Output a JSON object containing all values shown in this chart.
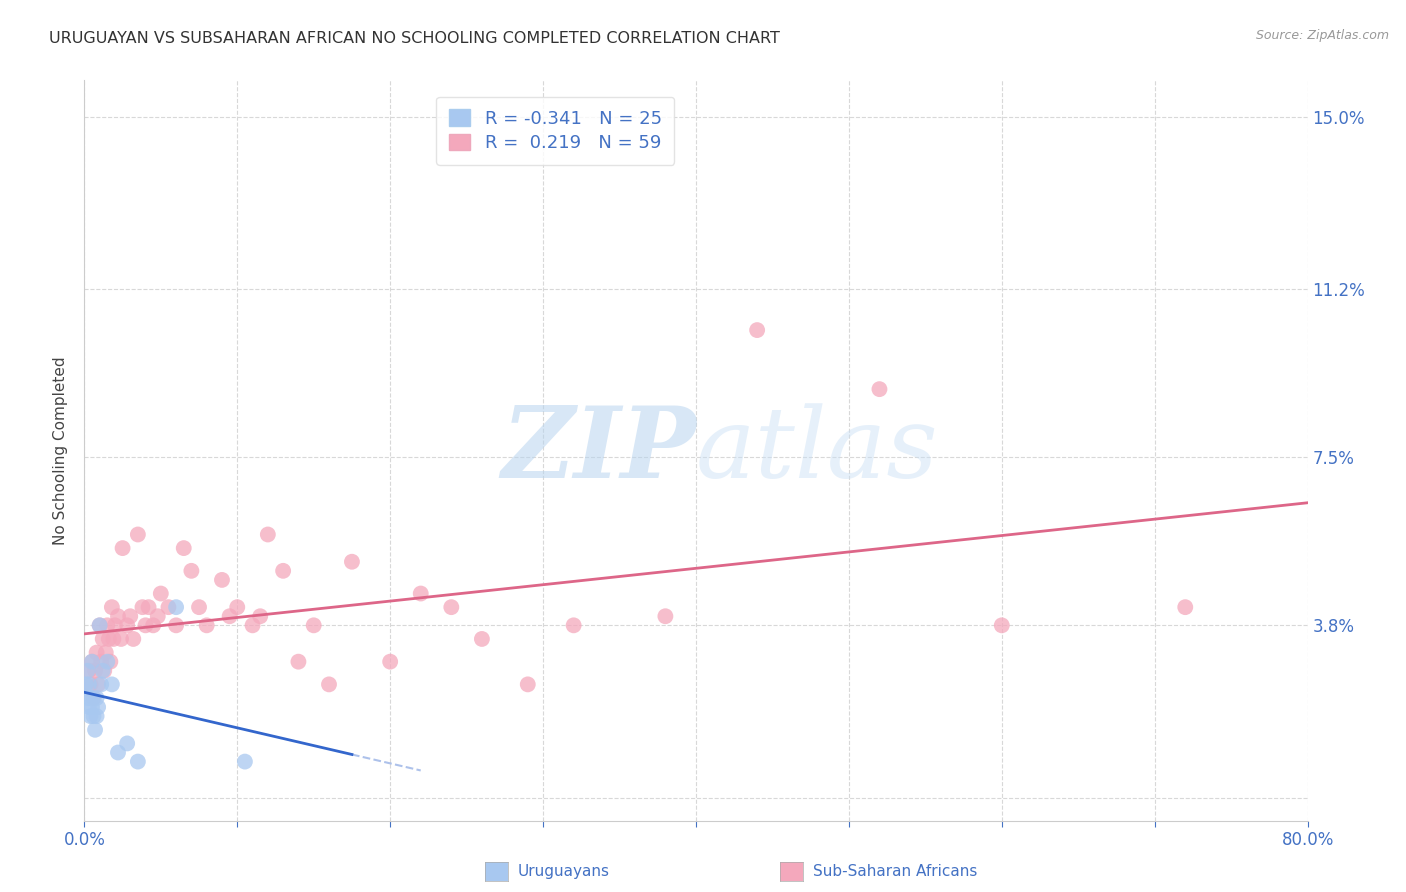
{
  "title": "URUGUAYAN VS SUBSAHARAN AFRICAN NO SCHOOLING COMPLETED CORRELATION CHART",
  "source": "Source: ZipAtlas.com",
  "ylabel": "No Schooling Completed",
  "watermark_zip": "ZIP",
  "watermark_atlas": "atlas",
  "xlim": [
    0.0,
    0.8
  ],
  "ylim": [
    -0.005,
    0.158
  ],
  "xticks": [
    0.0,
    0.1,
    0.2,
    0.3,
    0.4,
    0.5,
    0.6,
    0.7,
    0.8
  ],
  "xticklabels": [
    "0.0%",
    "",
    "",
    "",
    "",
    "",
    "",
    "",
    "80.0%"
  ],
  "yticks": [
    0.0,
    0.038,
    0.075,
    0.112,
    0.15
  ],
  "yticklabels": [
    "",
    "3.8%",
    "7.5%",
    "11.2%",
    "15.0%"
  ],
  "blue_color": "#a8c8f0",
  "pink_color": "#f4a8bc",
  "blue_line_color": "#3366cc",
  "pink_line_color": "#dd6688",
  "axis_color": "#4472c4",
  "grid_color": "#d8d8d8",
  "uruguayan_R": -0.341,
  "subsaharan_R": 0.219,
  "uruguayan_N": 25,
  "subsaharan_N": 59,
  "uruguayan_x": [
    0.001,
    0.002,
    0.002,
    0.003,
    0.003,
    0.004,
    0.004,
    0.005,
    0.005,
    0.006,
    0.006,
    0.007,
    0.008,
    0.008,
    0.009,
    0.01,
    0.011,
    0.012,
    0.015,
    0.018,
    0.022,
    0.028,
    0.035,
    0.06,
    0.105
  ],
  "uruguayan_y": [
    0.025,
    0.022,
    0.028,
    0.02,
    0.025,
    0.018,
    0.022,
    0.02,
    0.03,
    0.018,
    0.022,
    0.015,
    0.018,
    0.022,
    0.02,
    0.038,
    0.025,
    0.028,
    0.03,
    0.025,
    0.01,
    0.012,
    0.008,
    0.042,
    0.008
  ],
  "subsaharan_x": [
    0.003,
    0.004,
    0.005,
    0.006,
    0.007,
    0.008,
    0.009,
    0.01,
    0.011,
    0.012,
    0.013,
    0.014,
    0.015,
    0.016,
    0.017,
    0.018,
    0.019,
    0.02,
    0.022,
    0.024,
    0.025,
    0.028,
    0.03,
    0.032,
    0.035,
    0.038,
    0.04,
    0.042,
    0.045,
    0.048,
    0.05,
    0.055,
    0.06,
    0.065,
    0.07,
    0.075,
    0.08,
    0.09,
    0.095,
    0.1,
    0.11,
    0.115,
    0.12,
    0.13,
    0.14,
    0.15,
    0.16,
    0.175,
    0.2,
    0.22,
    0.24,
    0.26,
    0.29,
    0.32,
    0.38,
    0.44,
    0.52,
    0.6,
    0.72
  ],
  "subsaharan_y": [
    0.028,
    0.025,
    0.03,
    0.022,
    0.028,
    0.032,
    0.025,
    0.038,
    0.03,
    0.035,
    0.028,
    0.032,
    0.038,
    0.035,
    0.03,
    0.042,
    0.035,
    0.038,
    0.04,
    0.035,
    0.055,
    0.038,
    0.04,
    0.035,
    0.058,
    0.042,
    0.038,
    0.042,
    0.038,
    0.04,
    0.045,
    0.042,
    0.038,
    0.055,
    0.05,
    0.042,
    0.038,
    0.048,
    0.04,
    0.042,
    0.038,
    0.04,
    0.058,
    0.05,
    0.03,
    0.038,
    0.025,
    0.052,
    0.03,
    0.045,
    0.042,
    0.035,
    0.025,
    0.038,
    0.04,
    0.103,
    0.09,
    0.038,
    0.042
  ]
}
